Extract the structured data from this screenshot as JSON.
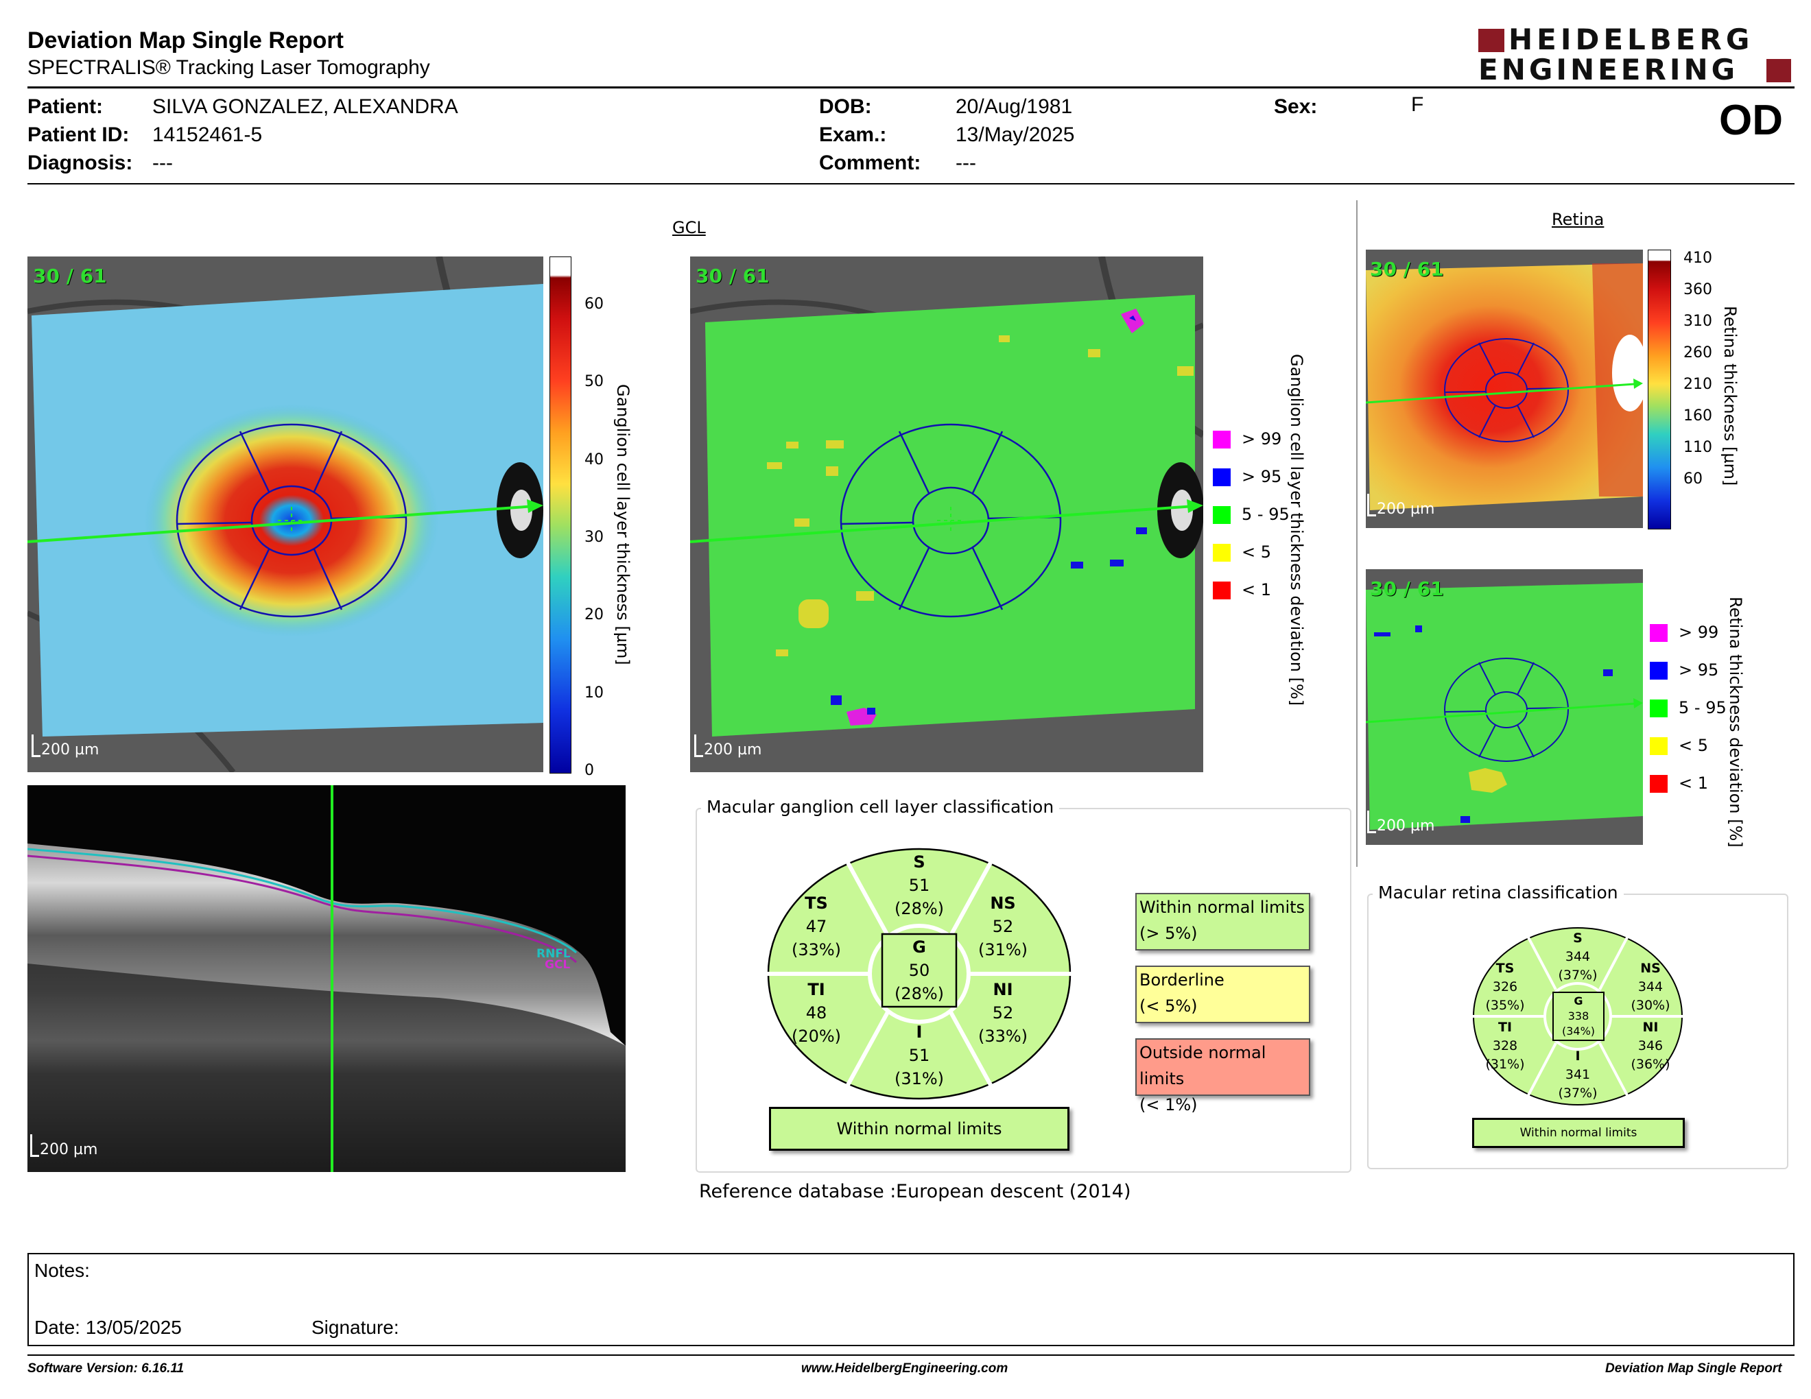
{
  "header": {
    "title": "Deviation Map Single Report",
    "subtitle": "SPECTRALIS® Tracking Laser Tomography",
    "logo_line1": "HEIDELBERG",
    "logo_line2": "ENGINEERING"
  },
  "patient": {
    "patient_label": "Patient:",
    "patient_value": "SILVA GONZALEZ, ALEXANDRA",
    "id_label": "Patient ID:",
    "id_value": "14152461-5",
    "diagnosis_label": "Diagnosis:",
    "diagnosis_value": "---",
    "dob_label": "DOB:",
    "dob_value": "20/Aug/1981",
    "exam_label": "Exam.:",
    "exam_value": "13/May/2025",
    "comment_label": "Comment:",
    "comment_value": "---",
    "sex_label": "Sex:",
    "sex_value": "F",
    "eye": "OD"
  },
  "gcl": {
    "section_title": "GCL",
    "frame_label": "30 / 61",
    "scale_label": "200 µm",
    "thickness_ticks": [
      "60",
      "50",
      "40",
      "30",
      "20",
      "10",
      "0"
    ],
    "thickness_axis": "Ganglion cell layer thickness [µm]",
    "deviation_axis": "Ganglion cell layer thickness deviation [%]",
    "legend": [
      {
        "label": "> 99",
        "color": "#ff00ff"
      },
      {
        "label": "> 95",
        "color": "#0000ff"
      },
      {
        "label": "5 - 95",
        "color": "#00ff00"
      },
      {
        "label": "< 5",
        "color": "#ffff00"
      },
      {
        "label": "< 1",
        "color": "#ff0000"
      }
    ],
    "bscan_layers": [
      "RNFL",
      "GCL"
    ],
    "classification_title": "Macular ganglion cell layer classification",
    "sectors": {
      "S": {
        "name": "S",
        "value": "51",
        "pct": "(28%)"
      },
      "TS": {
        "name": "TS",
        "value": "47",
        "pct": "(33%)"
      },
      "NS": {
        "name": "NS",
        "value": "52",
        "pct": "(31%)"
      },
      "G": {
        "name": "G",
        "value": "50",
        "pct": "(28%)"
      },
      "TI": {
        "name": "TI",
        "value": "48",
        "pct": "(20%)"
      },
      "NI": {
        "name": "NI",
        "value": "52",
        "pct": "(33%)"
      },
      "I": {
        "name": "I",
        "value": "51",
        "pct": "(31%)"
      }
    },
    "verdict": "Within normal limits",
    "key": [
      {
        "line1": "Within normal limits",
        "line2": "(> 5%)",
        "color": "#c8f896"
      },
      {
        "line1": "Borderline",
        "line2": "(< 5%)",
        "color": "#ffff99"
      },
      {
        "line1": "Outside normal limits",
        "line2": "(< 1%)",
        "color": "#ff9b8a"
      }
    ],
    "reference_label": "Reference database :",
    "reference_value": "European descent (2014)"
  },
  "retina": {
    "section_title": "Retina",
    "frame_label": "30 / 61",
    "scale_label": "200 µm",
    "thickness_ticks": [
      "410",
      "360",
      "310",
      "260",
      "210",
      "160",
      "110",
      "60"
    ],
    "thickness_axis": "Retina thickness [µm]",
    "deviation_axis": "Retina thickness deviation [%]",
    "legend": [
      {
        "label": "> 99",
        "color": "#ff00ff"
      },
      {
        "label": "> 95",
        "color": "#0000ff"
      },
      {
        "label": "5 - 95",
        "color": "#00ff00"
      },
      {
        "label": "< 5",
        "color": "#ffff00"
      },
      {
        "label": "< 1",
        "color": "#ff0000"
      }
    ],
    "classification_title": "Macular retina classification",
    "sectors": {
      "S": {
        "name": "S",
        "value": "344",
        "pct": "(37%)"
      },
      "TS": {
        "name": "TS",
        "value": "326",
        "pct": "(35%)"
      },
      "NS": {
        "name": "NS",
        "value": "344",
        "pct": "(30%)"
      },
      "G": {
        "name": "G",
        "value": "338",
        "pct": "(34%)"
      },
      "TI": {
        "name": "TI",
        "value": "328",
        "pct": "(31%)"
      },
      "NI": {
        "name": "NI",
        "value": "346",
        "pct": "(36%)"
      },
      "I": {
        "name": "I",
        "value": "341",
        "pct": "(37%)"
      }
    },
    "verdict": "Within normal limits"
  },
  "bscan": {
    "scale_label": "200 µm"
  },
  "notes": {
    "notes_label": "Notes:",
    "date_label": "Date: 13/05/2025",
    "signature_label": "Signature:"
  },
  "footer": {
    "version": "Software Version: 6.16.11",
    "website": "www.HeidelbergEngineering.com",
    "report": "Deviation Map Single Report"
  },
  "colors": {
    "logo": "#8b1a24",
    "grid": "#1010b0",
    "scan_line": "#22ee22",
    "within_normal": "#c8f896",
    "borderline": "#ffff99",
    "outside_normal": "#ff9b8a"
  }
}
